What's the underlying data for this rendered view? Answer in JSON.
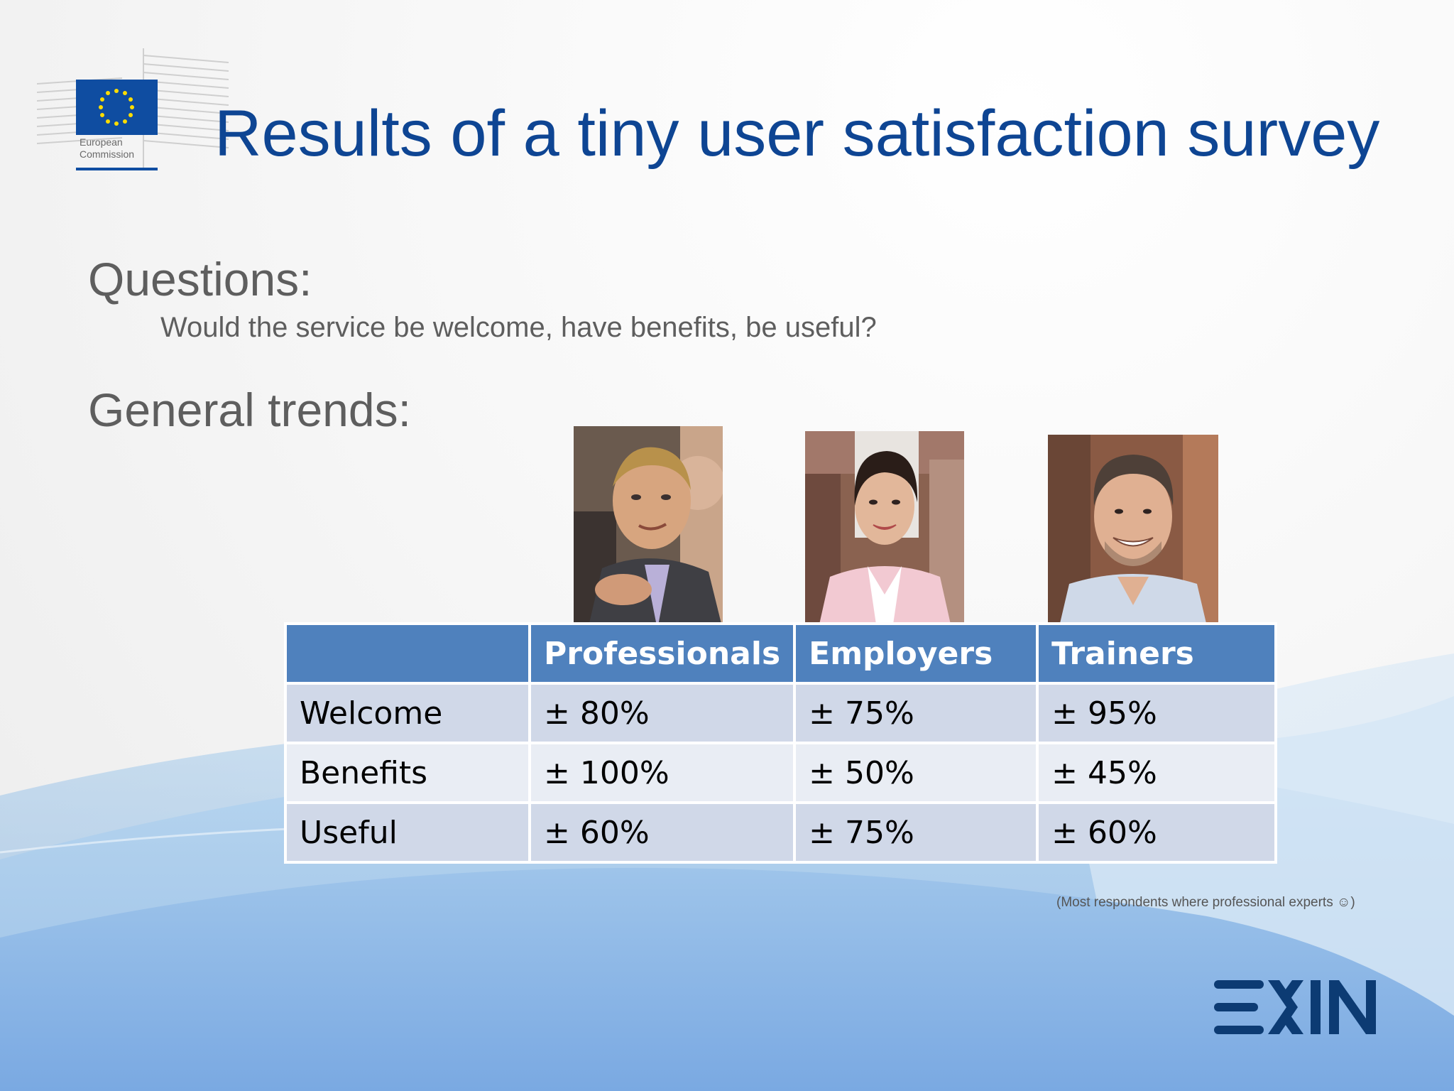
{
  "header": {
    "logo_text_line1": "European",
    "logo_text_line2": "Commission",
    "title": "Results of a tiny user satisfaction survey"
  },
  "questions": {
    "heading": "Questions:",
    "text": "Would the service be welcome, have benefits, be useful?"
  },
  "trends": {
    "heading": "General trends:"
  },
  "table": {
    "columns": [
      "",
      "Professionals",
      "Employers",
      "Trainers"
    ],
    "rows": [
      {
        "label": "Welcome",
        "values": [
          "± 80%",
          "± 75%",
          "± 95%"
        ]
      },
      {
        "label": "Benefits",
        "values": [
          "± 100%",
          "± 50%",
          "± 45%"
        ]
      },
      {
        "label": "Useful",
        "values": [
          "± 60%",
          "± 75%",
          "± 60%"
        ]
      }
    ]
  },
  "footnote": "(Most respondents where professional experts ☺)",
  "brand": {
    "footer_logo_text": "EXIN",
    "title_color": "#0e4593",
    "table_header_color": "#4f81bd"
  }
}
